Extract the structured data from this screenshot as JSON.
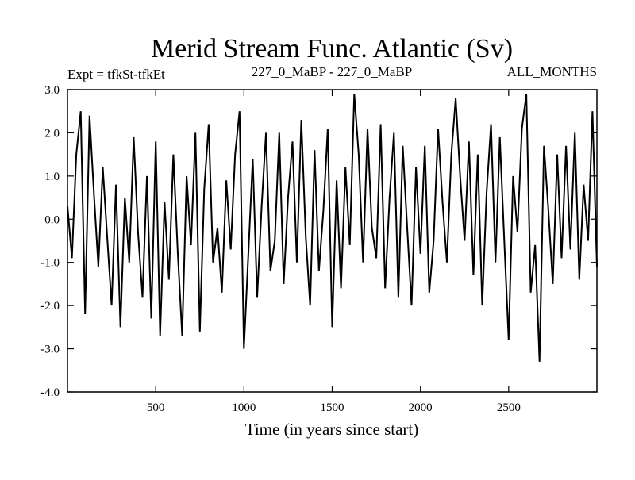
{
  "header": {
    "title": "Merid Stream Func. Atlantic (Sv)",
    "expt": "Expt = tfkSt-tfkEt",
    "period": "227_0_MaBP - 227_0_MaBP",
    "months": "ALL_MONTHS"
  },
  "chart_data": {
    "type": "line",
    "xlabel": "Time (in years since start)",
    "ylabel": "",
    "xlim": [
      0,
      3000
    ],
    "ylim": [
      -4.0,
      3.0
    ],
    "x_ticks": [
      500,
      1000,
      1500,
      2000,
      2500
    ],
    "x_tick_labels": [
      "500",
      "1000",
      "1500",
      "2000",
      "2500"
    ],
    "y_ticks": [
      -4.0,
      -3.0,
      -2.0,
      -1.0,
      0.0,
      1.0,
      2.0,
      3.0
    ],
    "y_tick_labels": [
      "-4.0",
      "-3.0",
      "-2.0",
      "-1.0",
      "0.0",
      "1.0",
      "2.0",
      "3.0"
    ],
    "grid": false,
    "legend": "none",
    "series": [
      {
        "color": "#000000",
        "x": [
          0,
          25,
          50,
          75,
          100,
          125,
          150,
          175,
          200,
          225,
          250,
          275,
          300,
          325,
          350,
          375,
          400,
          425,
          450,
          475,
          500,
          525,
          550,
          575,
          600,
          625,
          650,
          675,
          700,
          725,
          750,
          775,
          800,
          825,
          850,
          875,
          900,
          925,
          950,
          975,
          1000,
          1025,
          1050,
          1075,
          1100,
          1125,
          1150,
          1175,
          1200,
          1225,
          1250,
          1275,
          1300,
          1325,
          1350,
          1375,
          1400,
          1425,
          1450,
          1475,
          1500,
          1525,
          1550,
          1575,
          1600,
          1625,
          1650,
          1675,
          1700,
          1725,
          1750,
          1775,
          1800,
          1825,
          1850,
          1875,
          1900,
          1925,
          1950,
          1975,
          2000,
          2025,
          2050,
          2075,
          2100,
          2125,
          2150,
          2175,
          2200,
          2225,
          2250,
          2275,
          2300,
          2325,
          2350,
          2375,
          2400,
          2425,
          2450,
          2475,
          2500,
          2525,
          2550,
          2575,
          2600,
          2625,
          2650,
          2675,
          2700,
          2725,
          2750,
          2775,
          2800,
          2825,
          2850,
          2875,
          2900,
          2925,
          2950,
          2975,
          3000
        ],
        "y": [
          0.3,
          -0.9,
          1.5,
          2.5,
          -2.2,
          2.4,
          0.6,
          -1.1,
          1.2,
          -0.4,
          -2.0,
          0.8,
          -2.5,
          0.5,
          -1.0,
          1.9,
          -0.3,
          -1.8,
          1.0,
          -2.3,
          1.8,
          -2.7,
          0.4,
          -1.4,
          1.5,
          -0.8,
          -2.7,
          1.0,
          -0.6,
          2.0,
          -2.6,
          0.7,
          2.2,
          -1.0,
          -0.2,
          -1.7,
          0.9,
          -0.7,
          1.5,
          2.5,
          -3.0,
          -0.8,
          1.4,
          -1.8,
          0.3,
          2.0,
          -1.2,
          -0.5,
          2.0,
          -1.5,
          0.5,
          1.8,
          -1.0,
          2.3,
          -0.4,
          -2.0,
          1.6,
          -1.2,
          0.2,
          2.1,
          -2.5,
          0.9,
          -1.6,
          1.2,
          -0.6,
          2.9,
          1.5,
          -1.0,
          2.1,
          -0.2,
          -0.9,
          2.2,
          -1.6,
          0.5,
          2.0,
          -1.8,
          1.7,
          -0.2,
          -2.0,
          1.2,
          -0.8,
          1.7,
          -1.7,
          -0.5,
          2.1,
          0.4,
          -1.0,
          1.5,
          2.8,
          1.0,
          -0.5,
          1.8,
          -1.3,
          1.5,
          -2.0,
          0.6,
          2.2,
          -1.0,
          1.9,
          -0.5,
          -2.8,
          1.0,
          -0.3,
          2.1,
          2.9,
          -1.7,
          -0.6,
          -3.3,
          1.7,
          0.2,
          -1.5,
          1.5,
          -0.9,
          1.7,
          -0.7,
          2.0,
          -1.4,
          0.8,
          -0.5,
          2.5,
          -1.1
        ]
      }
    ]
  }
}
